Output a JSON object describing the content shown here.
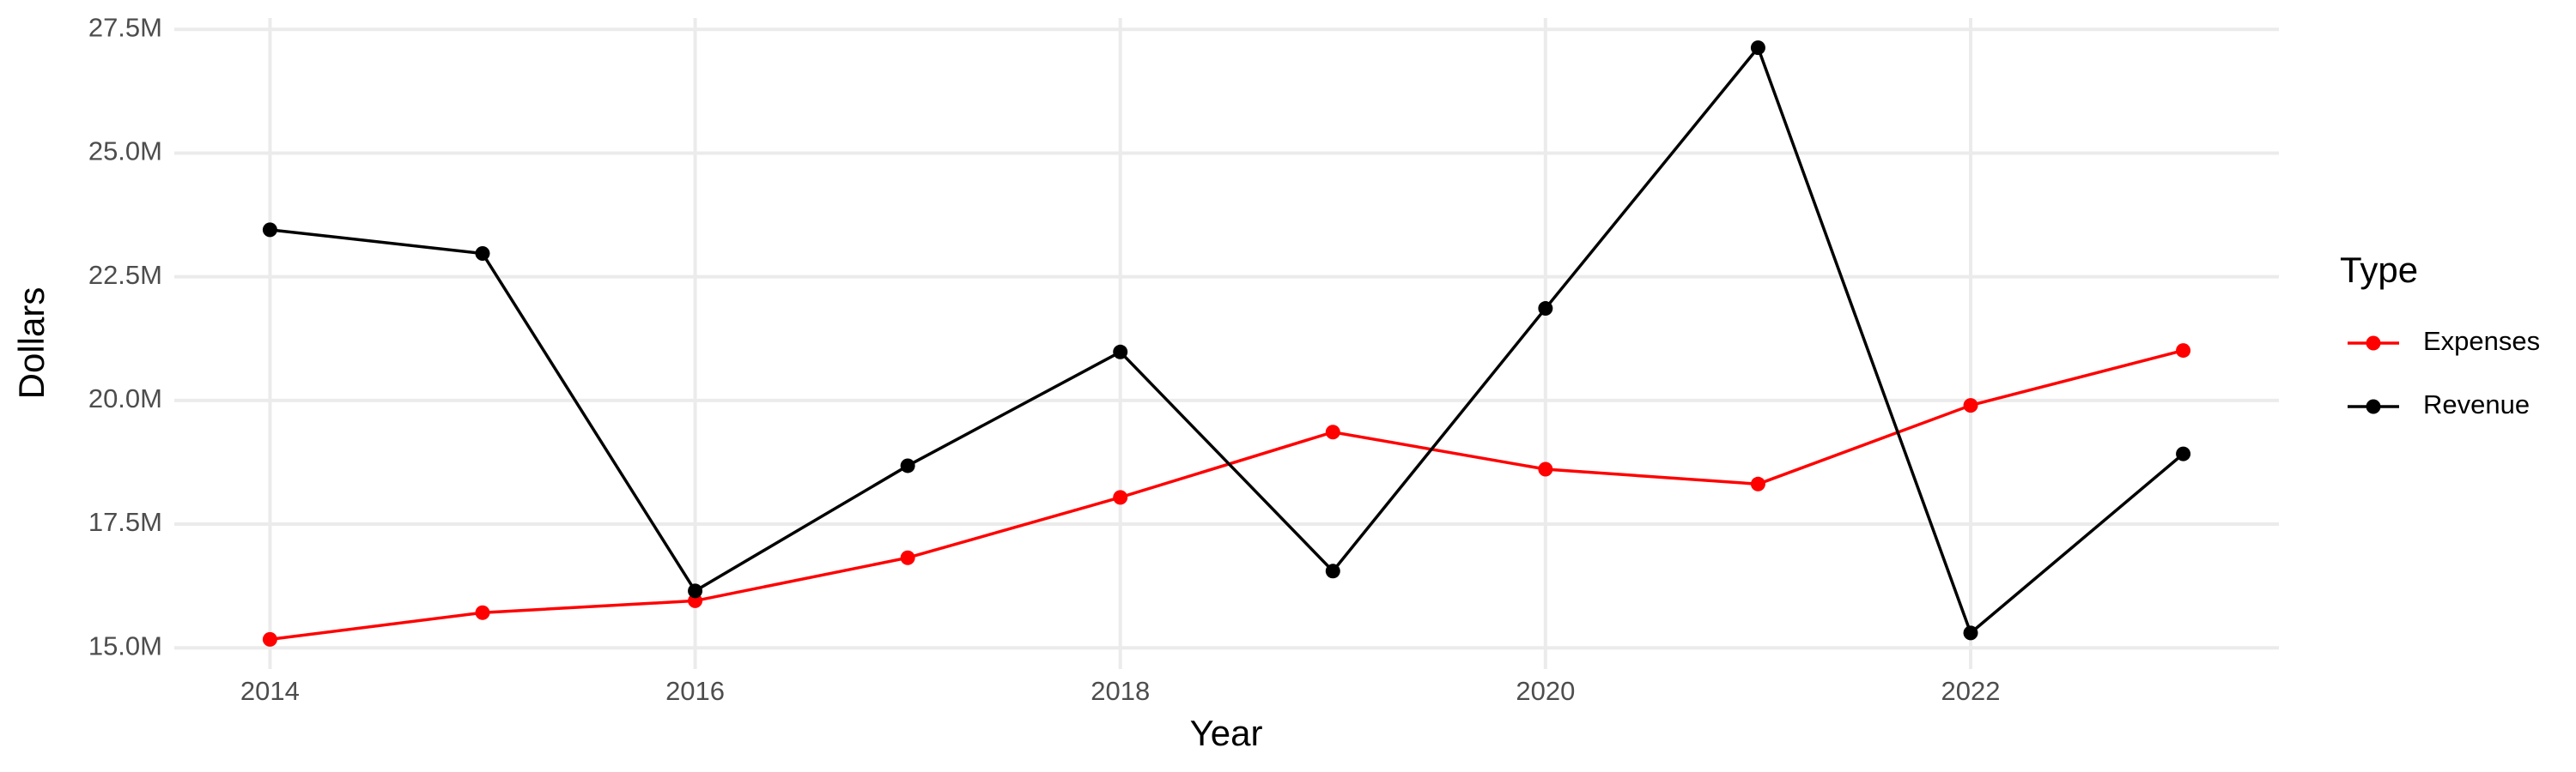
{
  "chart_data": {
    "type": "line",
    "x_label": "Year",
    "y_label": "Dollars",
    "legend_title": "Type",
    "legend_position": "right",
    "grid": true,
    "x": [
      2014,
      2015,
      2016,
      2017,
      2018,
      2019,
      2020,
      2021,
      2022,
      2023
    ],
    "series": [
      {
        "name": "Expenses",
        "color": "#ff0000",
        "values": [
          15170000,
          15710000,
          15950000,
          16820000,
          18040000,
          19360000,
          18610000,
          18310000,
          19900000,
          21010000
        ]
      },
      {
        "name": "Revenue",
        "color": "#000000",
        "values": [
          23450000,
          22970000,
          16150000,
          18680000,
          20980000,
          16550000,
          21860000,
          27130000,
          15300000,
          18920000
        ]
      }
    ],
    "xlim": [
      2013.55,
      2023.45
    ],
    "xticks": [
      2014,
      2016,
      2018,
      2020,
      2022
    ],
    "ylim": [
      14570000,
      27730000
    ],
    "yticks": [
      {
        "value": 15000000,
        "label": "15.0M"
      },
      {
        "value": 17500000,
        "label": "17.5M"
      },
      {
        "value": 20000000,
        "label": "20.0M"
      },
      {
        "value": 22500000,
        "label": "22.5M"
      },
      {
        "value": 25000000,
        "label": "25.0M"
      },
      {
        "value": 27500000,
        "label": "27.5M"
      }
    ]
  }
}
